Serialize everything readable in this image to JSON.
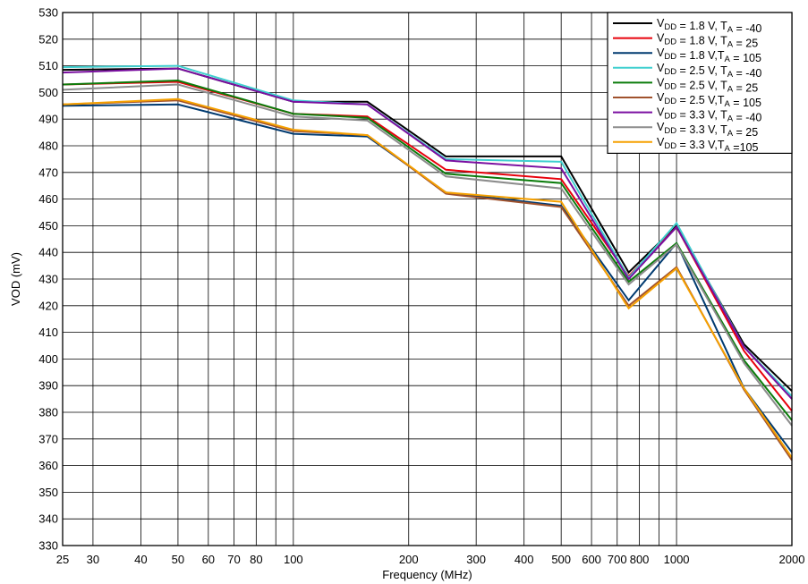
{
  "chart_data": {
    "type": "line",
    "x_scale": "log",
    "title": "",
    "xlabel": "Frequency (MHz)",
    "ylabel": "VOD (mV)",
    "xlim": [
      25,
      2000
    ],
    "ylim": [
      330,
      530
    ],
    "grid": true,
    "legend_position": "top-right",
    "x_ticks": [
      25,
      30,
      40,
      50,
      60,
      70,
      80,
      100,
      200,
      300,
      400,
      500,
      600,
      700,
      800,
      1000,
      2000
    ],
    "x_tick_labels": [
      "25",
      "30",
      "40",
      "50",
      "60",
      "70",
      "80",
      "100",
      "200",
      "300",
      "400",
      "500",
      "600",
      "700",
      "800",
      "1000",
      "2000"
    ],
    "x_vertical_gridlines": [
      25,
      30,
      40,
      50,
      60,
      70,
      80,
      90,
      100,
      200,
      300,
      400,
      500,
      600,
      700,
      800,
      900,
      1000,
      2000
    ],
    "y_ticks": [
      330,
      340,
      350,
      360,
      370,
      380,
      390,
      400,
      410,
      420,
      430,
      440,
      450,
      460,
      470,
      480,
      490,
      500,
      510,
      520,
      530
    ],
    "x": [
      25,
      50,
      100,
      156,
      250,
      500,
      750,
      1000,
      1500,
      2000
    ],
    "series": [
      {
        "legend": {
          "v_pre": "V",
          "v_sub": "DD",
          "mid": " = 1.8 V, T",
          "t_sub": "A",
          "post": " = -40"
        },
        "color": "#000000",
        "values": [
          508.5,
          509,
          496.5,
          496.5,
          476,
          476,
          432.5,
          450,
          405.5,
          388
        ]
      },
      {
        "legend": {
          "v_pre": "V",
          "v_sub": "DD",
          "mid": " = 1.8 V, T",
          "t_sub": "A",
          "post": " = 25"
        },
        "color": "#e8000b",
        "values": [
          503,
          504,
          492,
          491,
          471,
          467.5,
          431,
          449.5,
          403,
          380.5
        ]
      },
      {
        "legend": {
          "v_pre": "V",
          "v_sub": "DD",
          "mid": " = 1.8 V,T",
          "t_sub": "A",
          "post": " = 105"
        },
        "color": "#003a70",
        "values": [
          495,
          495.5,
          484.5,
          483.5,
          462.5,
          457.5,
          422,
          443.5,
          389,
          365
        ]
      },
      {
        "legend": {
          "v_pre": "V",
          "v_sub": "DD",
          "mid": " = 2.5 V, T",
          "t_sub": "A",
          "post": " = -40"
        },
        "color": "#3fcfcf",
        "values": [
          509.5,
          510,
          497,
          495.5,
          475,
          474,
          430.5,
          451,
          404.5,
          386
        ]
      },
      {
        "legend": {
          "v_pre": "V",
          "v_sub": "DD",
          "mid": " = 2.5 V, T",
          "t_sub": "A",
          "post": " = 25"
        },
        "color": "#0b7c0b",
        "values": [
          503,
          504.5,
          492,
          490.5,
          469.5,
          466,
          429,
          443.5,
          399.5,
          377
        ]
      },
      {
        "legend": {
          "v_pre": "V",
          "v_sub": "DD",
          "mid": " = 2.5 V,T",
          "t_sub": "A",
          "post": " = 105"
        },
        "color": "#a0522d",
        "values": [
          495.5,
          497,
          485.5,
          484,
          462,
          457,
          420,
          434.5,
          388.5,
          362
        ]
      },
      {
        "legend": {
          "v_pre": "V",
          "v_sub": "DD",
          "mid": " = 3.3 V, T",
          "t_sub": "A",
          "post": " = -40"
        },
        "color": "#7a0fa0",
        "values": [
          507.5,
          509,
          496.5,
          495.5,
          474.5,
          471.5,
          430,
          449.5,
          404.5,
          385
        ]
      },
      {
        "legend": {
          "v_pre": "V",
          "v_sub": "DD",
          "mid": " = 3.3 V, T",
          "t_sub": "A",
          "post": " = 25"
        },
        "color": "#8c8c8c",
        "values": [
          501,
          503,
          491,
          489.5,
          468.5,
          464,
          428,
          443,
          398.5,
          375
        ]
      },
      {
        "legend": {
          "v_pre": "V",
          "v_sub": "DD",
          "mid": " = 3.3 V,T",
          "t_sub": "A",
          "post": " =105"
        },
        "color": "#f5a000",
        "values": [
          495.5,
          497.5,
          486,
          484,
          462.5,
          459,
          419,
          434,
          389,
          363
        ]
      }
    ]
  }
}
